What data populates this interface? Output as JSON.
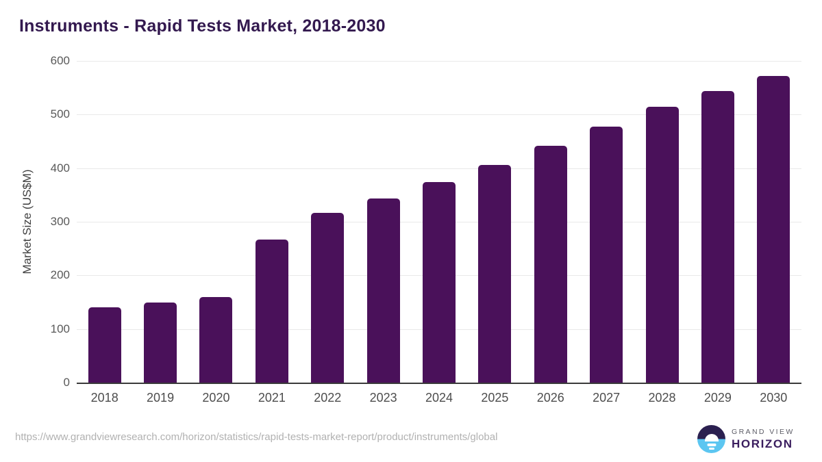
{
  "chart_data": {
    "type": "bar",
    "title": "Instruments - Rapid Tests Market, 2018-2030",
    "categories": [
      "2018",
      "2019",
      "2020",
      "2021",
      "2022",
      "2023",
      "2024",
      "2025",
      "2026",
      "2027",
      "2028",
      "2029",
      "2030"
    ],
    "values": [
      140,
      149,
      160,
      267,
      317,
      343,
      374,
      406,
      442,
      478,
      514,
      544,
      572
    ],
    "xlabel": "",
    "ylabel": "Market Size (US$M)",
    "ylim": [
      0,
      600
    ],
    "y_ticks": [
      0,
      100,
      200,
      300,
      400,
      500,
      600
    ],
    "grid": true,
    "legend": false,
    "bar_color": "#4a115a"
  },
  "colors": {
    "title_text": "#33194f",
    "bar": "#4a115a",
    "gridline": "#e9e9e9",
    "axis_line": "#3a3a3a",
    "tick_text": "#595959",
    "url_text": "#b1b1b1",
    "logo_top": "#2b2050",
    "logo_bottom": "#5cc6f1",
    "logo_horizon_text": "#3a1d5e"
  },
  "footer": {
    "source_url": "https://www.grandviewresearch.com/horizon/statistics/rapid-tests-market-report/product/instruments/global",
    "logo": {
      "line1": "GRAND VIEW",
      "line2": "HORIZON",
      "icon": "horizon-sunrise-logo"
    }
  }
}
